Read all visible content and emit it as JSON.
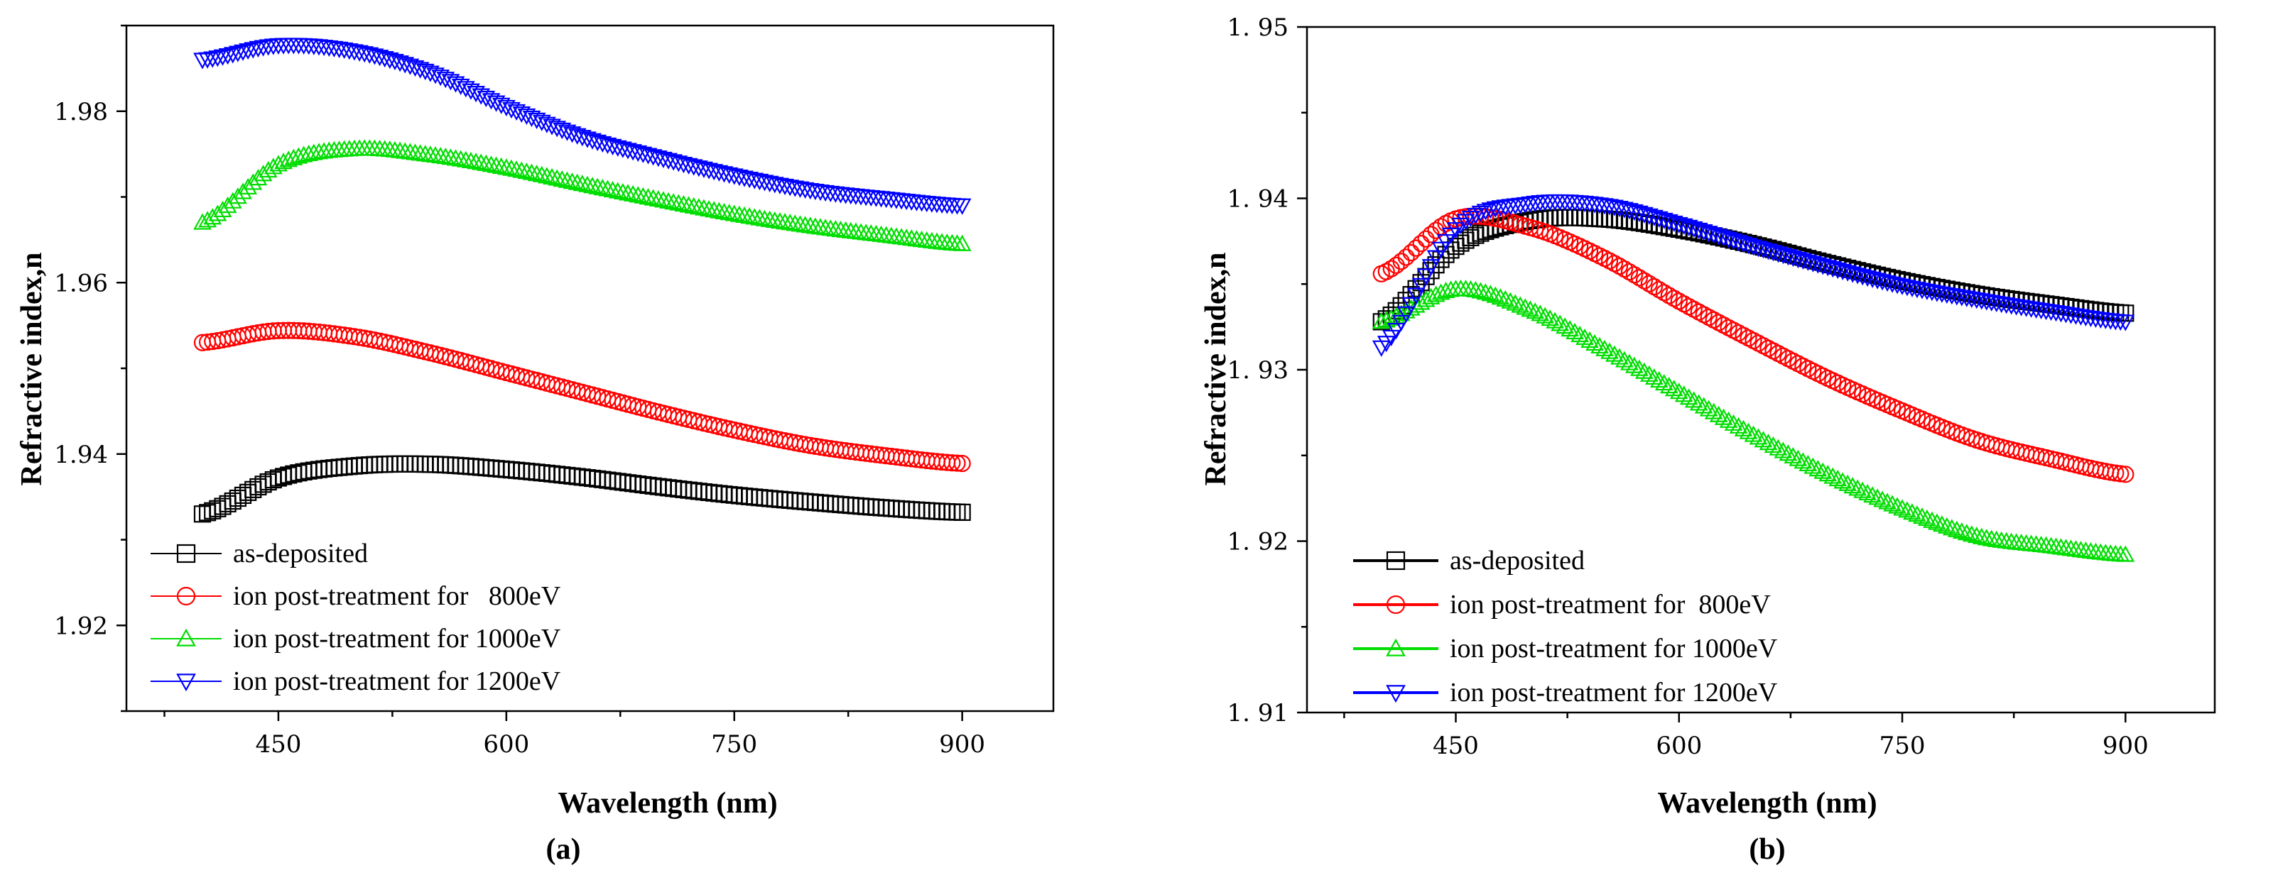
{
  "chart_data": [
    {
      "type": "scatter",
      "panel_label": "(a)",
      "xlabel": "Wavelength (nm)",
      "ylabel": "Refractive index,n",
      "xlim": [
        350,
        960
      ],
      "ylim": [
        1.91,
        1.99
      ],
      "xticks": [
        450,
        600,
        750,
        900
      ],
      "yticks": [
        1.92,
        1.94,
        1.96,
        1.98
      ],
      "xtick_labels": [
        "450",
        "600",
        "750",
        "900"
      ],
      "ytick_labels": [
        "1.92",
        "1.94",
        "1.96",
        "1.98"
      ],
      "legend_position": "bottom-left",
      "series": [
        {
          "name": "as-deposited",
          "color": "#000000",
          "marker": "square",
          "x": [
            400,
            450,
            500,
            550,
            600,
            650,
            700,
            750,
            800,
            850,
            900
          ],
          "y": [
            1.933,
            1.9372,
            1.9386,
            1.9388,
            1.9382,
            1.9373,
            1.9362,
            1.9352,
            1.9344,
            1.9337,
            1.9332
          ]
        },
        {
          "name": "ion post-treatment for   800eV",
          "color": "#ff0000",
          "marker": "circle",
          "x": [
            400,
            450,
            500,
            550,
            600,
            650,
            700,
            750,
            800,
            850,
            900
          ],
          "y": [
            1.953,
            1.9544,
            1.9537,
            1.9518,
            1.9495,
            1.9472,
            1.9449,
            1.9428,
            1.941,
            1.9398,
            1.9389
          ]
        },
        {
          "name": "ion post-treatment for 1000eV",
          "color": "#00dd00",
          "marker": "triangle-up",
          "x": [
            400,
            450,
            500,
            550,
            600,
            650,
            700,
            750,
            800,
            850,
            900
          ],
          "y": [
            1.967,
            1.9738,
            1.9756,
            1.9749,
            1.9734,
            1.9715,
            1.9697,
            1.968,
            1.9666,
            1.9655,
            1.9645
          ]
        },
        {
          "name": "ion post-treatment for 1200eV",
          "color": "#0000ff",
          "marker": "triangle-down",
          "x": [
            400,
            450,
            500,
            550,
            600,
            650,
            700,
            750,
            800,
            850,
            900
          ],
          "y": [
            1.986,
            1.9877,
            1.987,
            1.9845,
            1.9805,
            1.977,
            1.9746,
            1.9725,
            1.9708,
            1.9698,
            1.969
          ]
        }
      ]
    },
    {
      "type": "scatter",
      "panel_label": "(b)",
      "xlabel": "Wavelength (nm)",
      "ylabel": "Refractive index,n",
      "xlim": [
        350,
        960
      ],
      "ylim": [
        1.91,
        1.95
      ],
      "xticks": [
        450,
        600,
        750,
        900
      ],
      "yticks": [
        1.91,
        1.92,
        1.93,
        1.94,
        1.95
      ],
      "xtick_labels": [
        "450",
        "600",
        "750",
        "900"
      ],
      "ytick_labels": [
        "1. 91",
        "1. 92",
        "1. 93",
        "1. 94",
        "1. 95"
      ],
      "legend_position": "bottom-left",
      "series": [
        {
          "name": "as-deposited",
          "color": "#000000",
          "marker": "square",
          "x": [
            400,
            450,
            500,
            550,
            600,
            650,
            700,
            750,
            800,
            850,
            900
          ],
          "y": [
            1.9328,
            1.9372,
            1.9387,
            1.9388,
            1.9382,
            1.9373,
            1.9362,
            1.9352,
            1.9344,
            1.9338,
            1.9333
          ]
        },
        {
          "name": "ion post-treatment for  800eV",
          "color": "#ff0000",
          "marker": "circle",
          "x": [
            400,
            450,
            500,
            550,
            600,
            650,
            700,
            750,
            800,
            850,
            900
          ],
          "y": [
            1.9356,
            1.9388,
            1.9383,
            1.9365,
            1.934,
            1.9317,
            1.9295,
            1.9276,
            1.9259,
            1.9248,
            1.9239
          ]
        },
        {
          "name": "ion post-treatment for 1000eV",
          "color": "#00dd00",
          "marker": "triangle-up",
          "x": [
            400,
            450,
            500,
            550,
            600,
            650,
            700,
            750,
            800,
            850,
            900
          ],
          "y": [
            1.9328,
            1.9347,
            1.9335,
            1.9312,
            1.9287,
            1.9262,
            1.9239,
            1.9219,
            1.9203,
            1.9197,
            1.9192
          ]
        },
        {
          "name": "ion post-treatment for 1200eV",
          "color": "#0000ff",
          "marker": "triangle-down",
          "x": [
            400,
            450,
            500,
            550,
            600,
            650,
            700,
            750,
            800,
            850,
            900
          ],
          "y": [
            1.9313,
            1.9382,
            1.9397,
            1.9396,
            1.9385,
            1.9372,
            1.936,
            1.9349,
            1.9341,
            1.9334,
            1.9328
          ]
        }
      ]
    }
  ]
}
